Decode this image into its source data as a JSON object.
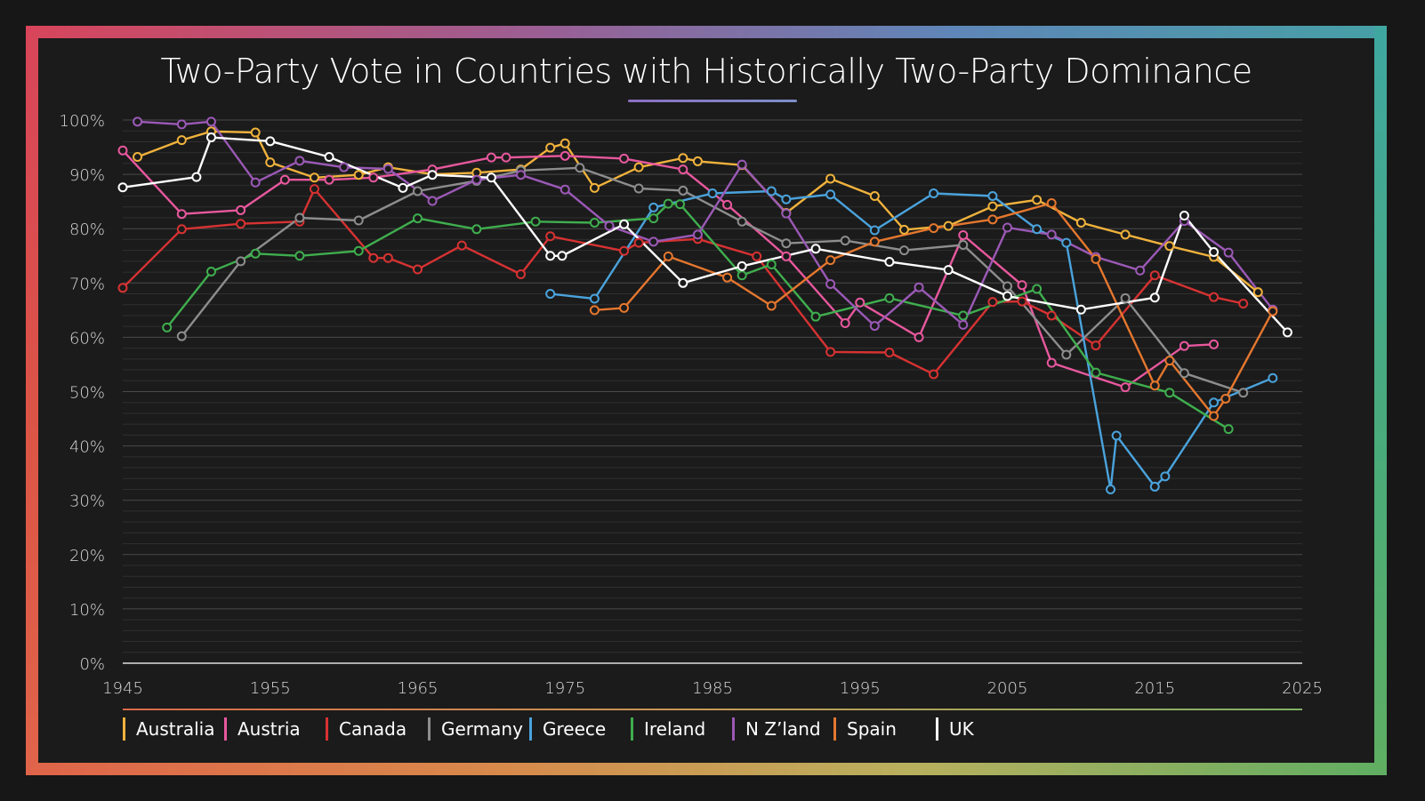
{
  "title": "Two-Party Vote in Countries with Historically Two-Party Dominance",
  "colors": {
    "background": "#1b1b1b",
    "grid": "#3a3a3a",
    "axis_text": "#d6d6d6"
  },
  "chart_data": {
    "type": "line",
    "title": "Two-Party Vote in Countries with Historically Two-Party Dominance",
    "xlabel": "",
    "ylabel": "",
    "xlim": [
      1945,
      2025
    ],
    "ylim": [
      0,
      100
    ],
    "x_ticks": [
      "1945",
      "1955",
      "1965",
      "1975",
      "1985",
      "1995",
      "2005",
      "2015",
      "2025"
    ],
    "y_ticks": [
      "0%",
      "10%",
      "20%",
      "30%",
      "40%",
      "50%",
      "60%",
      "70%",
      "80%",
      "90%",
      "100%"
    ],
    "grid": true,
    "legend_position": "bottom",
    "series": [
      {
        "name": "Australia",
        "color": "#f0b23c",
        "points": [
          [
            1946,
            93.2
          ],
          [
            1949,
            96.3
          ],
          [
            1951,
            97.9
          ],
          [
            1954,
            97.7
          ],
          [
            1955,
            92.2
          ],
          [
            1958,
            89.4
          ],
          [
            1961,
            89.9
          ],
          [
            1963,
            91.3
          ],
          [
            1966,
            90.0
          ],
          [
            1969,
            90.3
          ],
          [
            1972,
            90.9
          ],
          [
            1974,
            94.9
          ],
          [
            1975,
            95.7
          ],
          [
            1977,
            87.5
          ],
          [
            1980,
            91.3
          ],
          [
            1983,
            93.0
          ],
          [
            1984,
            92.4
          ],
          [
            1987,
            91.7
          ],
          [
            1990,
            82.9
          ],
          [
            1993,
            89.2
          ],
          [
            1996,
            86.0
          ],
          [
            1998,
            79.8
          ],
          [
            2001,
            80.5
          ],
          [
            2004,
            84.1
          ],
          [
            2007,
            85.3
          ],
          [
            2010,
            81.1
          ],
          [
            2013,
            78.9
          ],
          [
            2016,
            76.8
          ],
          [
            2019,
            74.8
          ],
          [
            2022,
            68.3
          ]
        ]
      },
      {
        "name": "Austria",
        "color": "#e8589e",
        "points": [
          [
            1945,
            94.4
          ],
          [
            1949,
            82.7
          ],
          [
            1953,
            83.4
          ],
          [
            1956,
            89.0
          ],
          [
            1959,
            89.0
          ],
          [
            1962,
            89.4
          ],
          [
            1966,
            90.9
          ],
          [
            1970,
            93.1
          ],
          [
            1971,
            93.1
          ],
          [
            1975,
            93.4
          ],
          [
            1979,
            92.9
          ],
          [
            1983,
            90.9
          ],
          [
            1986,
            84.4
          ],
          [
            1990,
            74.9
          ],
          [
            1994,
            62.6
          ],
          [
            1995,
            66.4
          ],
          [
            1999,
            60.0
          ],
          [
            2002,
            78.8
          ],
          [
            2006,
            69.6
          ],
          [
            2008,
            55.3
          ],
          [
            2013,
            50.8
          ],
          [
            2017,
            58.4
          ],
          [
            2019,
            58.7
          ]
        ]
      },
      {
        "name": "Canada",
        "color": "#d73232",
        "points": [
          [
            1945,
            69.1
          ],
          [
            1949,
            79.9
          ],
          [
            1953,
            80.9
          ],
          [
            1957,
            81.3
          ],
          [
            1958,
            87.3
          ],
          [
            1962,
            74.6
          ],
          [
            1963,
            74.6
          ],
          [
            1965,
            72.5
          ],
          [
            1968,
            76.9
          ],
          [
            1972,
            71.6
          ],
          [
            1974,
            78.6
          ],
          [
            1979,
            75.9
          ],
          [
            1980,
            77.4
          ],
          [
            1984,
            78.1
          ],
          [
            1988,
            74.9
          ],
          [
            1993,
            57.3
          ],
          [
            1997,
            57.2
          ],
          [
            2000,
            53.2
          ],
          [
            2004,
            66.5
          ],
          [
            2006,
            66.6
          ],
          [
            2008,
            64.0
          ],
          [
            2011,
            58.5
          ],
          [
            2015,
            71.4
          ],
          [
            2019,
            67.4
          ],
          [
            2021,
            66.2
          ]
        ]
      },
      {
        "name": "Germany",
        "color": "#8d8d8d",
        "points": [
          [
            1949,
            60.2
          ],
          [
            1953,
            74.0
          ],
          [
            1957,
            82.0
          ],
          [
            1961,
            81.5
          ],
          [
            1965,
            86.9
          ],
          [
            1969,
            88.8
          ],
          [
            1972,
            90.7
          ],
          [
            1976,
            91.2
          ],
          [
            1980,
            87.4
          ],
          [
            1983,
            87.0
          ],
          [
            1987,
            81.3
          ],
          [
            1990,
            77.3
          ],
          [
            1994,
            77.8
          ],
          [
            1998,
            76.0
          ],
          [
            2002,
            77.0
          ],
          [
            2005,
            69.4
          ],
          [
            2009,
            56.8
          ],
          [
            2013,
            67.2
          ],
          [
            2017,
            53.4
          ],
          [
            2021,
            49.8
          ]
        ]
      },
      {
        "name": "Greece",
        "color": "#4aa3dc",
        "points": [
          [
            1974,
            68.0
          ],
          [
            1977,
            67.1
          ],
          [
            1981,
            83.9
          ],
          [
            1985,
            86.5
          ],
          [
            1989,
            86.9
          ],
          [
            1990,
            85.4
          ],
          [
            1993,
            86.3
          ],
          [
            1996,
            79.7
          ],
          [
            2000,
            86.5
          ],
          [
            2004,
            86.0
          ],
          [
            2007,
            79.9
          ],
          [
            2009,
            77.4
          ],
          [
            2012,
            32.0
          ],
          [
            2012.4,
            41.9
          ],
          [
            2015,
            32.5
          ],
          [
            2015.7,
            34.4
          ],
          [
            2019,
            48.0
          ],
          [
            2023,
            52.5
          ]
        ]
      },
      {
        "name": "Ireland",
        "color": "#3fae4e",
        "points": [
          [
            1948,
            61.8
          ],
          [
            1951,
            72.1
          ],
          [
            1954,
            75.4
          ],
          [
            1957,
            75.0
          ],
          [
            1961,
            75.9
          ],
          [
            1965,
            81.9
          ],
          [
            1969,
            79.9
          ],
          [
            1973,
            81.3
          ],
          [
            1977,
            81.1
          ],
          [
            1981,
            81.9
          ],
          [
            1982,
            84.6
          ],
          [
            1982.8,
            84.5
          ],
          [
            1987,
            71.4
          ],
          [
            1989,
            73.4
          ],
          [
            1992,
            63.8
          ],
          [
            1997,
            67.2
          ],
          [
            2002,
            64.0
          ],
          [
            2007,
            68.9
          ],
          [
            2011,
            53.5
          ],
          [
            2016,
            49.8
          ],
          [
            2020,
            43.1
          ]
        ]
      },
      {
        "name": "N Z’land",
        "color": "#9b59b6",
        "points": [
          [
            1946,
            99.7
          ],
          [
            1949,
            99.2
          ],
          [
            1951,
            99.7
          ],
          [
            1954,
            88.5
          ],
          [
            1957,
            92.5
          ],
          [
            1960,
            91.3
          ],
          [
            1963,
            91.0
          ],
          [
            1966,
            85.1
          ],
          [
            1969,
            89.0
          ],
          [
            1972,
            89.9
          ],
          [
            1975,
            87.2
          ],
          [
            1978,
            80.5
          ],
          [
            1981,
            77.6
          ],
          [
            1984,
            78.9
          ],
          [
            1987,
            91.8
          ],
          [
            1990,
            82.8
          ],
          [
            1993,
            69.8
          ],
          [
            1996,
            62.1
          ],
          [
            1999,
            69.2
          ],
          [
            2002,
            62.3
          ],
          [
            2005,
            80.2
          ],
          [
            2008,
            78.9
          ],
          [
            2011,
            74.8
          ],
          [
            2014,
            72.3
          ],
          [
            2017,
            81.4
          ],
          [
            2020,
            75.6
          ],
          [
            2023,
            65.1
          ]
        ]
      },
      {
        "name": "Spain",
        "color": "#e5772e",
        "points": [
          [
            1977,
            65.0
          ],
          [
            1979,
            65.4
          ],
          [
            1982,
            74.9
          ],
          [
            1986,
            71.0
          ],
          [
            1989,
            65.8
          ],
          [
            1993,
            74.2
          ],
          [
            1996,
            77.6
          ],
          [
            2000,
            80.1
          ],
          [
            2004,
            81.7
          ],
          [
            2008,
            84.7
          ],
          [
            2011,
            74.4
          ],
          [
            2015,
            51.1
          ],
          [
            2016,
            55.7
          ],
          [
            2019,
            45.5
          ],
          [
            2019.8,
            48.7
          ],
          [
            2023,
            64.8
          ]
        ]
      },
      {
        "name": "UK",
        "color": "#ffffff",
        "points": [
          [
            1945,
            87.6
          ],
          [
            1950,
            89.5
          ],
          [
            1951,
            96.8
          ],
          [
            1955,
            96.1
          ],
          [
            1959,
            93.2
          ],
          [
            1964,
            87.5
          ],
          [
            1966,
            89.9
          ],
          [
            1970,
            89.4
          ],
          [
            1974,
            75.0
          ],
          [
            1974.8,
            75.0
          ],
          [
            1979,
            80.8
          ],
          [
            1983,
            70.0
          ],
          [
            1987,
            73.1
          ],
          [
            1992,
            76.3
          ],
          [
            1997,
            73.9
          ],
          [
            2001,
            72.4
          ],
          [
            2005,
            67.6
          ],
          [
            2010,
            65.1
          ],
          [
            2015,
            67.3
          ],
          [
            2017,
            82.4
          ],
          [
            2019,
            75.7
          ],
          [
            2024,
            60.9
          ]
        ]
      }
    ]
  }
}
